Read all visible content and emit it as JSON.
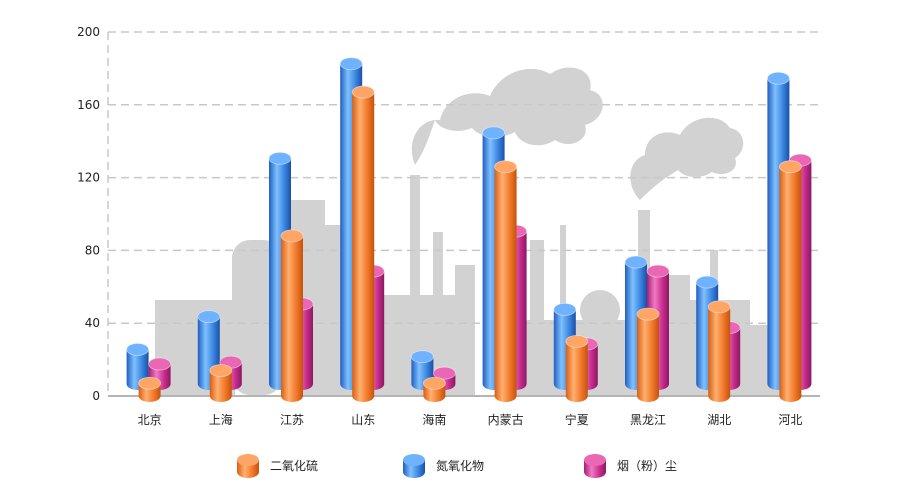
{
  "chart_data": {
    "type": "bar",
    "categories": [
      "北京",
      "上海",
      "江苏",
      "山东",
      "海南",
      "内蒙古",
      "宁夏",
      "黑龙江",
      "湖北",
      "河北"
    ],
    "series": [
      {
        "name": "氮氧化物",
        "color": "#3a86e0",
        "values": [
          19,
          37,
          124,
          176,
          15,
          138,
          41,
          67,
          56,
          168
        ]
      },
      {
        "name": "二氧化硫",
        "color": "#f0782a",
        "values": [
          7,
          14,
          88,
          167,
          7,
          126,
          30,
          45,
          49,
          126
        ]
      },
      {
        "name": "烟（粉）尘",
        "color": "#c92e8e",
        "values": [
          11,
          12,
          44,
          62,
          6,
          84,
          22,
          62,
          31,
          123
        ]
      }
    ],
    "yticks": [
      0,
      40,
      80,
      120,
      160,
      200
    ],
    "ylim": [
      0,
      200
    ],
    "grid": true,
    "legend_position": "bottom",
    "legend_order": [
      "二氧化硫",
      "氮氧化物",
      "烟（粉）尘"
    ]
  }
}
